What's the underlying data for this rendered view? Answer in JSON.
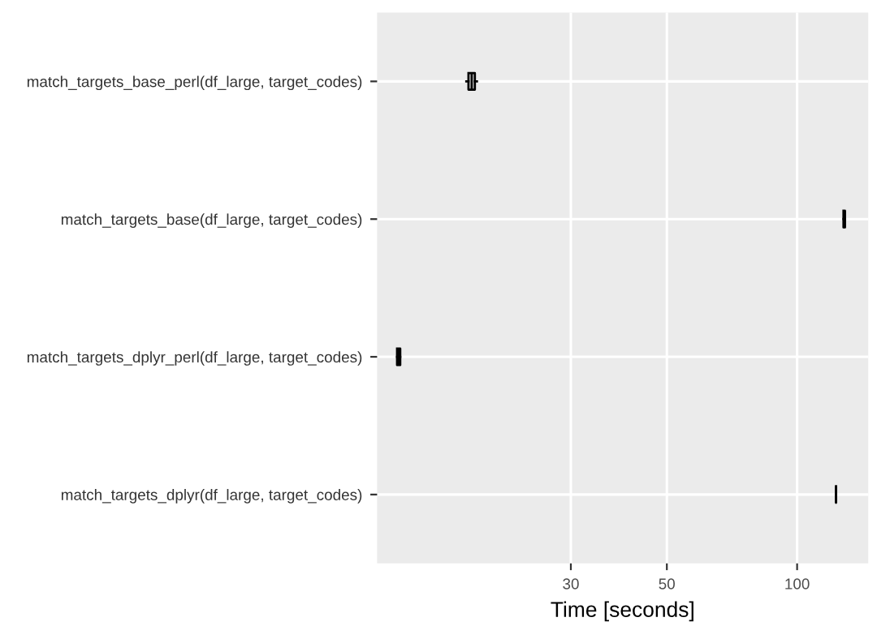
{
  "chart_data": {
    "type": "box",
    "orientation": "horizontal",
    "log": "x",
    "xlabel": "Time [seconds]",
    "categories": [
      "match_targets_base_perl(df_large, target_codes)",
      "match_targets_base(df_large, target_codes)",
      "match_targets_dplyr_perl(df_large, target_codes)",
      "match_targets_dplyr(df_large, target_codes)"
    ],
    "boxes": [
      {
        "low": 17.2,
        "q1": 17.4,
        "median": 17.7,
        "q3": 18.0,
        "high": 18.2
      },
      {
        "low": 128,
        "q1": 128,
        "median": 128.5,
        "q3": 129,
        "high": 129
      },
      {
        "low": 11.9,
        "q1": 11.9,
        "median": 12.0,
        "q3": 12.1,
        "high": 12.1
      },
      {
        "low": 123,
        "q1": 123,
        "median": 123,
        "q3": 123,
        "high": 123
      }
    ],
    "xlim": [
      10.7,
      146
    ],
    "xticks": [
      30,
      50,
      100
    ],
    "grid": true,
    "color": "#000000"
  }
}
